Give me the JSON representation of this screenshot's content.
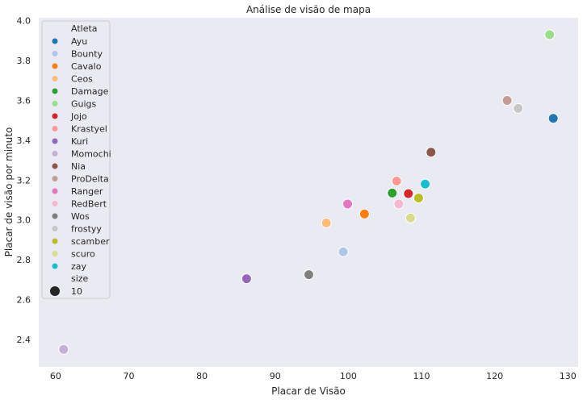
{
  "chart_data": {
    "type": "scatter",
    "title": "Análise de visão de mapa",
    "xlabel": "Placar de Visão",
    "ylabel": "Placar de visão por minuto",
    "xlim": [
      57.7,
      131.4
    ],
    "ylim": [
      2.262,
      4.015
    ],
    "xticks": [
      60,
      70,
      80,
      90,
      100,
      110,
      120,
      130
    ],
    "yticks": [
      2.4,
      2.6,
      2.8,
      3.0,
      3.2,
      3.4,
      3.6,
      3.8,
      4.0
    ],
    "xtick_labels": [
      "60",
      "70",
      "80",
      "90",
      "100",
      "110",
      "120",
      "130"
    ],
    "ytick_labels": [
      "2.4",
      "2.6",
      "2.8",
      "3.0",
      "3.2",
      "3.4",
      "3.6",
      "3.8",
      "4.0"
    ],
    "grid": false,
    "background": "#eaeaf2",
    "legend": {
      "placement": "upper-left",
      "hue_title": "Atleta",
      "size_title": "size",
      "size_value": "10",
      "size_marker_color": "#262626"
    },
    "series": [
      {
        "name": "Ayu",
        "color": "#1f77b4",
        "x": 128.0,
        "y": 3.51
      },
      {
        "name": "Bounty",
        "color": "#aec7e8",
        "x": 99.3,
        "y": 2.84
      },
      {
        "name": "Cavalo",
        "color": "#ff7f0e",
        "x": 102.2,
        "y": 3.03
      },
      {
        "name": "Ceos",
        "color": "#ffbb78",
        "x": 97.0,
        "y": 2.985
      },
      {
        "name": "Damage",
        "color": "#2ca02c",
        "x": 106.0,
        "y": 3.135
      },
      {
        "name": "Guigs",
        "color": "#98df8a",
        "x": 127.5,
        "y": 3.93
      },
      {
        "name": "Jojo",
        "color": "#d62728",
        "x": 108.2,
        "y": 3.132
      },
      {
        "name": "Krastyel",
        "color": "#ff9896",
        "x": 106.6,
        "y": 3.195
      },
      {
        "name": "Kuri",
        "color": "#9467bd",
        "x": 86.1,
        "y": 2.705
      },
      {
        "name": "Momochi",
        "color": "#c5b0d5",
        "x": 61.1,
        "y": 2.35
      },
      {
        "name": "Nia",
        "color": "#8c564b",
        "x": 111.3,
        "y": 3.34
      },
      {
        "name": "ProDelta",
        "color": "#c49c94",
        "x": 121.7,
        "y": 3.6
      },
      {
        "name": "Ranger",
        "color": "#e377c2",
        "x": 99.9,
        "y": 3.08
      },
      {
        "name": "RedBert",
        "color": "#f7b6d2",
        "x": 106.9,
        "y": 3.08
      },
      {
        "name": "Wos",
        "color": "#7f7f7f",
        "x": 94.6,
        "y": 2.725
      },
      {
        "name": "frostyy",
        "color": "#c7c7c7",
        "x": 123.2,
        "y": 3.56
      },
      {
        "name": "scamber",
        "color": "#bcbd22",
        "x": 109.6,
        "y": 3.11
      },
      {
        "name": "scuro",
        "color": "#dbdb8d",
        "x": 108.5,
        "y": 3.01
      },
      {
        "name": "zay",
        "color": "#17becf",
        "x": 110.5,
        "y": 3.18
      }
    ]
  }
}
